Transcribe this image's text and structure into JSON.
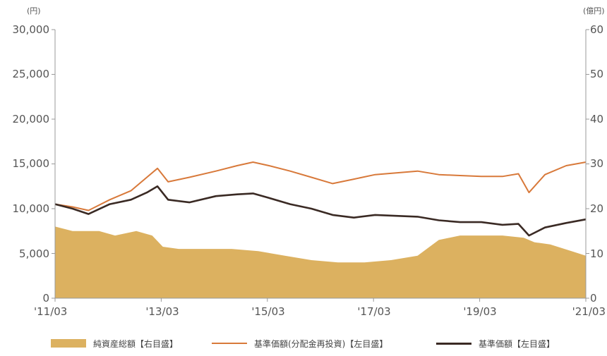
{
  "colors": {
    "area": "#dcb160",
    "orange_line": "#d8793a",
    "dark_line": "#3a2a24",
    "axis": "#999999"
  },
  "axes": {
    "left_unit": "(円)",
    "right_unit": "(億円)",
    "left_ticks": [
      "30,000",
      "25,000",
      "20,000",
      "15,000",
      "10,000",
      "5,000",
      "0"
    ],
    "right_ticks": [
      "60",
      "50",
      "40",
      "30",
      "20",
      "10",
      "0"
    ],
    "x_ticks": [
      "'11/03",
      "'13/03",
      "'15/03",
      "'17/03",
      "'19/03",
      "'21/03"
    ]
  },
  "legend": [
    {
      "label": "純資産総額【右目盛】",
      "type": "area"
    },
    {
      "label": "基準価額(分配金再投資)【左目盛】",
      "type": "line",
      "color_key": "orange_line"
    },
    {
      "label": "基準価額【左目盛】",
      "type": "line",
      "color_key": "dark_line"
    }
  ],
  "chart_data": {
    "type": "line",
    "x_unit": "year",
    "x_range": [
      2011.17,
      2021.17
    ],
    "y_left": {
      "range": [
        0,
        30000
      ],
      "unit": "円"
    },
    "y_right": {
      "range": [
        0,
        60
      ],
      "unit": "億円"
    },
    "x_tick_values": [
      2011.17,
      2013.17,
      2015.17,
      2017.17,
      2019.17,
      2021.17
    ],
    "series": [
      {
        "name": "純資産総額【右目盛】",
        "kind": "area",
        "axis": "right",
        "x": [
          2011.17,
          2011.5,
          2012.0,
          2012.3,
          2012.7,
          2013.0,
          2013.2,
          2013.5,
          2014.0,
          2014.5,
          2015.0,
          2015.5,
          2016.0,
          2016.5,
          2017.0,
          2017.5,
          2018.0,
          2018.4,
          2018.8,
          2019.2,
          2019.6,
          2020.0,
          2020.2,
          2020.5,
          2020.9,
          2021.17
        ],
        "y": [
          16,
          15,
          15,
          14,
          15,
          14,
          11.5,
          11,
          11,
          11,
          10.5,
          9.5,
          8.5,
          8,
          8,
          8.5,
          9.5,
          13,
          14,
          14,
          14,
          13.5,
          12.5,
          12,
          10.5,
          9.5
        ]
      },
      {
        "name": "基準価額(分配金再投資)【左目盛】",
        "kind": "line",
        "axis": "left",
        "x": [
          2011.17,
          2011.5,
          2011.8,
          2012.2,
          2012.6,
          2012.9,
          2013.1,
          2013.3,
          2013.7,
          2014.2,
          2014.6,
          2014.9,
          2015.2,
          2015.6,
          2016.0,
          2016.4,
          2016.8,
          2017.2,
          2017.6,
          2018.0,
          2018.4,
          2018.8,
          2019.2,
          2019.6,
          2019.9,
          2020.1,
          2020.4,
          2020.8,
          2021.17
        ],
        "y": [
          10500,
          10200,
          9800,
          11000,
          12000,
          13500,
          14500,
          13000,
          13500,
          14200,
          14800,
          15200,
          14800,
          14200,
          13500,
          12800,
          13300,
          13800,
          14000,
          14200,
          13800,
          13700,
          13600,
          13600,
          13900,
          11800,
          13800,
          14800,
          15200
        ]
      },
      {
        "name": "基準価額【左目盛】",
        "kind": "line",
        "axis": "left",
        "x": [
          2011.17,
          2011.5,
          2011.8,
          2012.2,
          2012.6,
          2012.9,
          2013.1,
          2013.3,
          2013.7,
          2014.2,
          2014.6,
          2014.9,
          2015.2,
          2015.6,
          2016.0,
          2016.4,
          2016.8,
          2017.2,
          2017.6,
          2018.0,
          2018.4,
          2018.8,
          2019.2,
          2019.6,
          2019.9,
          2020.1,
          2020.4,
          2020.8,
          2021.17
        ],
        "y": [
          10500,
          10000,
          9400,
          10500,
          11000,
          11800,
          12500,
          11000,
          10700,
          11400,
          11600,
          11700,
          11200,
          10500,
          10000,
          9300,
          9000,
          9300,
          9200,
          9100,
          8700,
          8500,
          8500,
          8200,
          8300,
          7000,
          7900,
          8400,
          8800
        ]
      }
    ],
    "grid": false,
    "legend_position": "bottom"
  }
}
